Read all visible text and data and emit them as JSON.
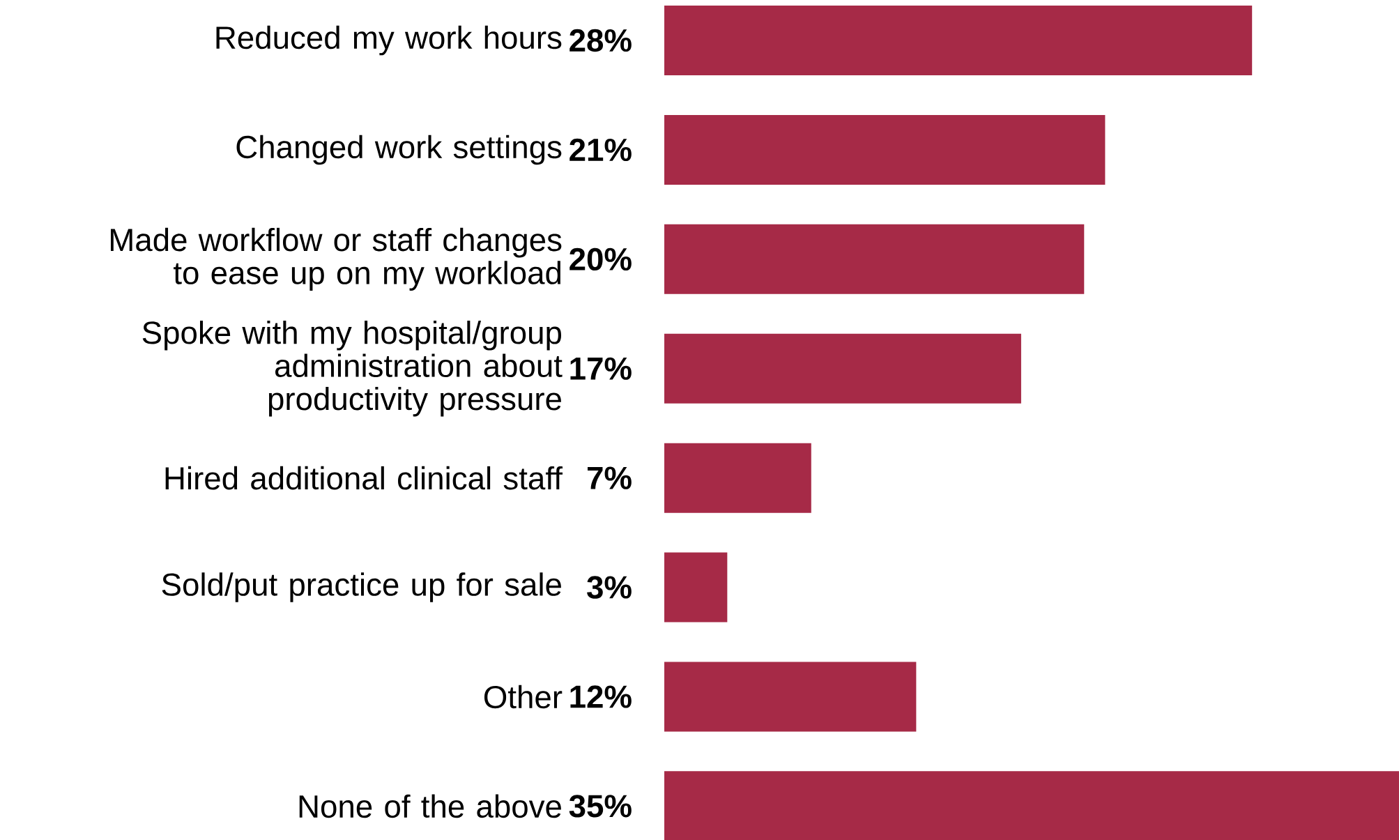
{
  "chart_data": {
    "type": "bar",
    "orientation": "horizontal",
    "color": "#a62a47",
    "categories": [
      "Reduced my work hours",
      "Changed work settings",
      "Made workflow or staff changes to ease up on my workload",
      "Spoke with my hospital/group administration about productivity pressure",
      "Hired additional clinical staff",
      "Sold/put practice up for sale",
      "Other",
      "None of the above"
    ],
    "values": [
      28,
      21,
      20,
      17,
      7,
      3,
      12,
      35
    ],
    "value_labels": [
      "28%",
      "21%",
      "20%",
      "17%",
      "7%",
      "3%",
      "12%",
      "35%"
    ]
  }
}
